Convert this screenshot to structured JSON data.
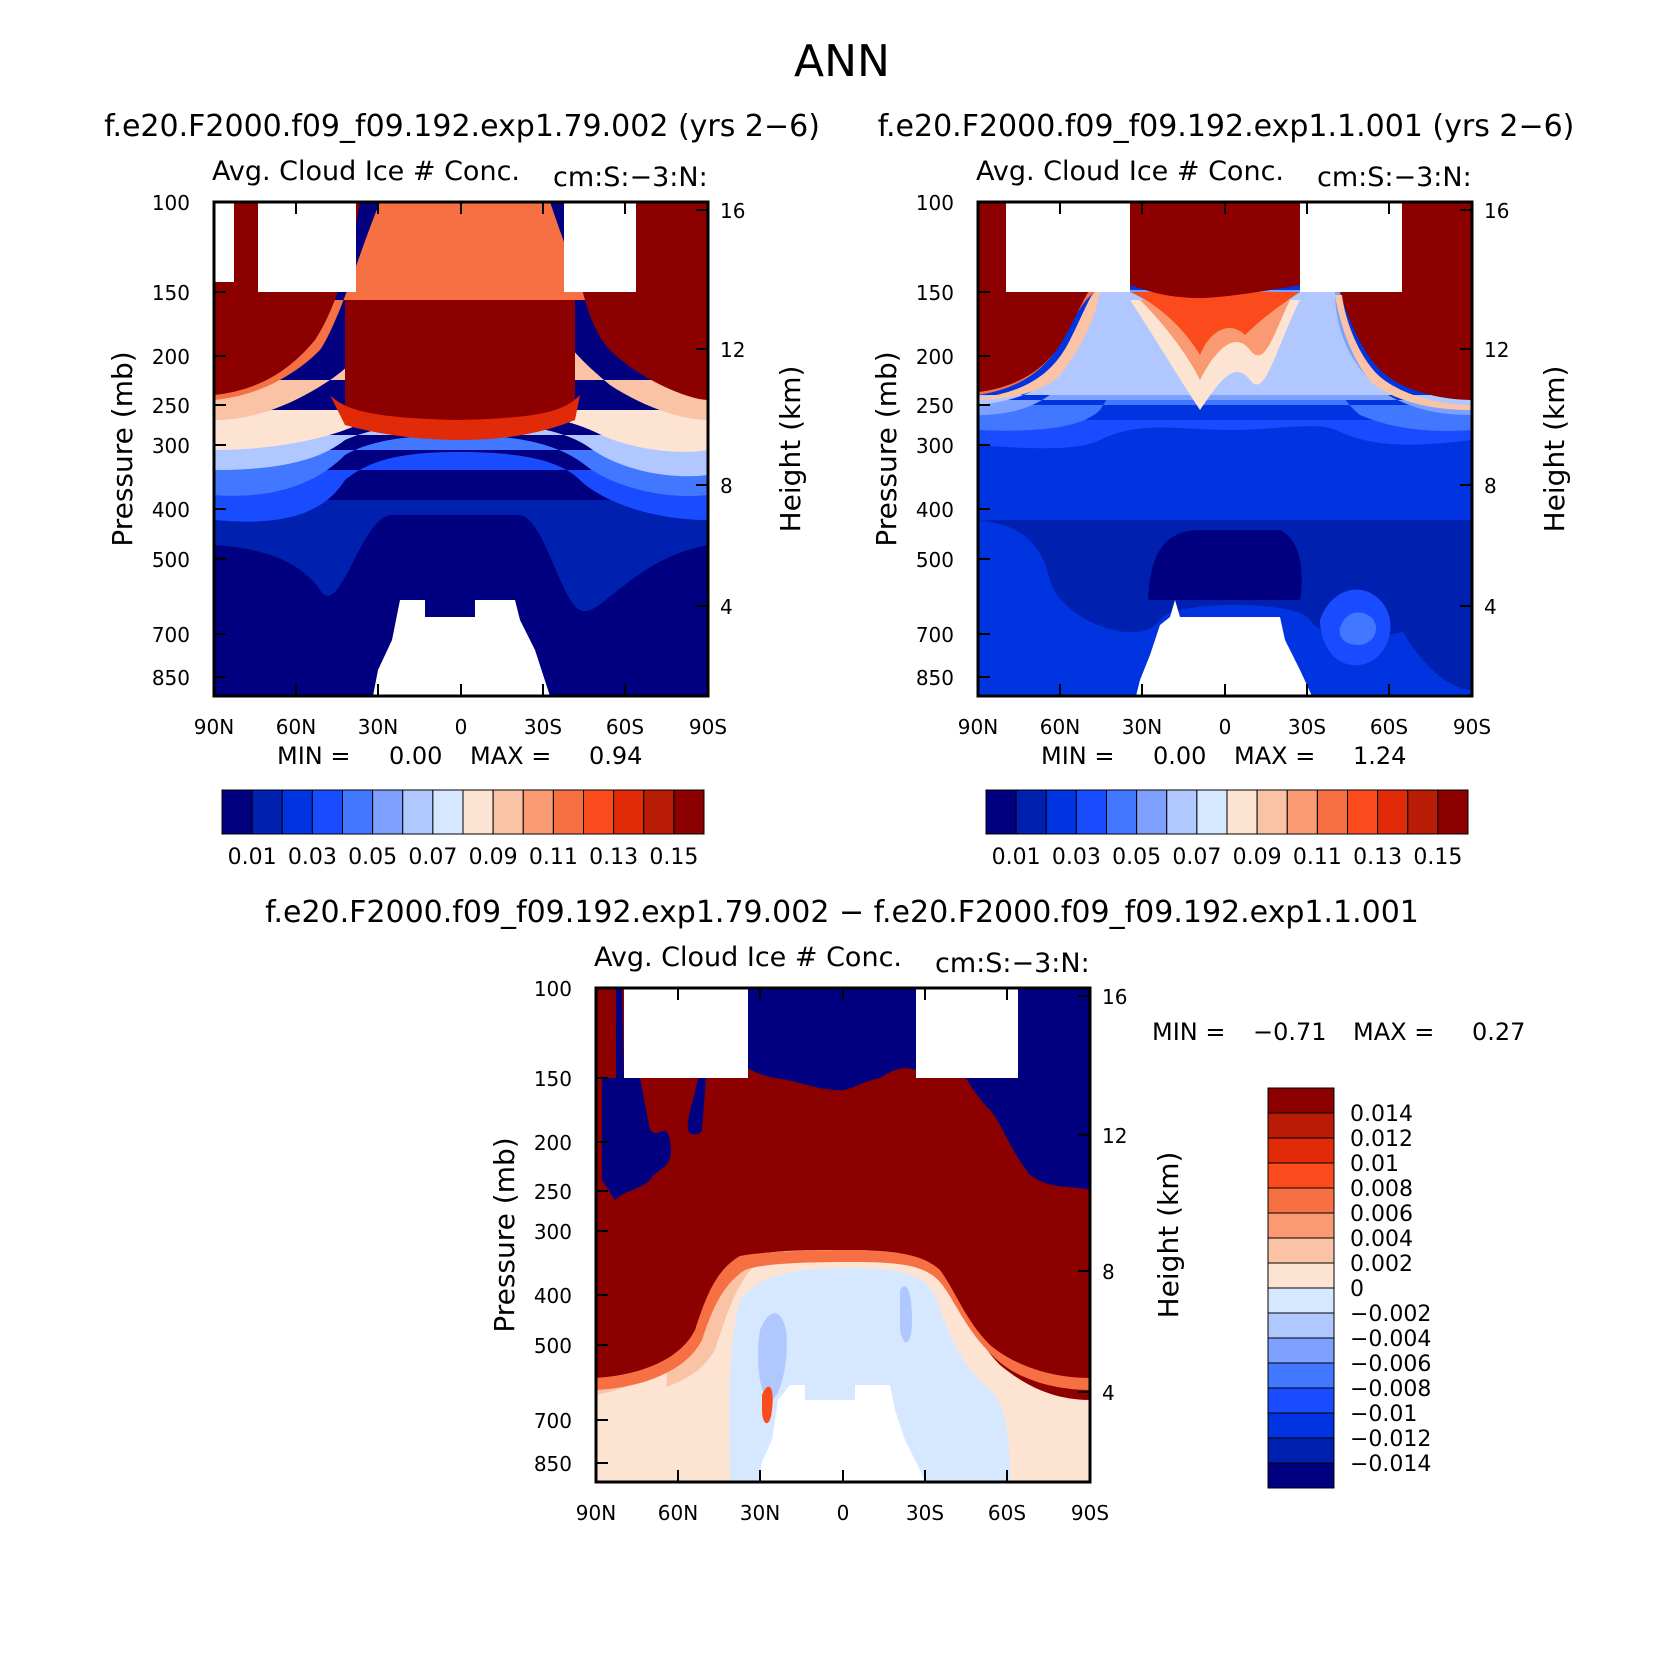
{
  "page_title": "ANN",
  "palette": [
    "#000080",
    "#0020b0",
    "#0034e0",
    "#1a4cff",
    "#4278ff",
    "#7ea0ff",
    "#b0c8ff",
    "#d6e8ff",
    "#fde4d2",
    "#fbc3a5",
    "#f99a73",
    "#f77044",
    "#fb4b1c",
    "#e02a08",
    "#b81c06",
    "#8c0000"
  ],
  "chart_data": [
    {
      "type": "heatmap",
      "case_title": "f.e20.F2000.f09_f09.192.exp1.79.002 (yrs 2−6)",
      "title": "Avg. Cloud Ice # Conc.",
      "units": "cm:S:−3:N:",
      "xlabel": "",
      "ylabel": "Pressure (mb)",
      "ylabel_right": "Height (km)",
      "x_ticks": [
        "90N",
        "60N",
        "30N",
        "0",
        "30S",
        "60S",
        "90S"
      ],
      "y_ticks": [
        "100",
        "150",
        "200",
        "250",
        "300",
        "400",
        "500",
        "700",
        "850"
      ],
      "y_ticks_right": [
        "16",
        "12",
        "8",
        "4"
      ],
      "ylim_mb": [
        100,
        1000
      ],
      "log_y": true,
      "min_label": "MIN =",
      "min": "0.00",
      "max_label": "MAX =",
      "max": "0.94",
      "contour_levels": [
        0.01,
        0.02,
        0.03,
        0.04,
        0.05,
        0.06,
        0.07,
        0.08,
        0.09,
        0.1,
        0.11,
        0.12,
        0.13,
        0.14,
        0.15
      ],
      "colorbar_labels": [
        "0.01",
        "0.03",
        "0.05",
        "0.07",
        "0.09",
        "0.11",
        "0.13",
        "0.15"
      ]
    },
    {
      "type": "heatmap",
      "case_title": "f.e20.F2000.f09_f09.192.exp1.1.001 (yrs 2−6)",
      "title": "Avg. Cloud Ice # Conc.",
      "units": "cm:S:−3:N:",
      "xlabel": "",
      "ylabel": "Pressure (mb)",
      "ylabel_right": "Height (km)",
      "x_ticks": [
        "90N",
        "60N",
        "30N",
        "0",
        "30S",
        "60S",
        "90S"
      ],
      "y_ticks": [
        "100",
        "150",
        "200",
        "250",
        "300",
        "400",
        "500",
        "700",
        "850"
      ],
      "y_ticks_right": [
        "16",
        "12",
        "8",
        "4"
      ],
      "ylim_mb": [
        100,
        1000
      ],
      "log_y": true,
      "min_label": "MIN =",
      "min": "0.00",
      "max_label": "MAX =",
      "max": "1.24",
      "contour_levels": [
        0.01,
        0.02,
        0.03,
        0.04,
        0.05,
        0.06,
        0.07,
        0.08,
        0.09,
        0.1,
        0.11,
        0.12,
        0.13,
        0.14,
        0.15
      ],
      "colorbar_labels": [
        "0.01",
        "0.03",
        "0.05",
        "0.07",
        "0.09",
        "0.11",
        "0.13",
        "0.15"
      ]
    },
    {
      "type": "heatmap",
      "case_title": "f.e20.F2000.f09_f09.192.exp1.79.002 − f.e20.F2000.f09_f09.192.exp1.1.001",
      "title": "Avg. Cloud Ice # Conc.",
      "units": "cm:S:−3:N:",
      "xlabel": "",
      "ylabel": "Pressure (mb)",
      "ylabel_right": "Height (km)",
      "x_ticks": [
        "90N",
        "60N",
        "30N",
        "0",
        "30S",
        "60S",
        "90S"
      ],
      "y_ticks": [
        "100",
        "150",
        "200",
        "250",
        "300",
        "400",
        "500",
        "700",
        "850"
      ],
      "y_ticks_right": [
        "16",
        "12",
        "8",
        "4"
      ],
      "ylim_mb": [
        100,
        1000
      ],
      "log_y": true,
      "min_label": "MIN =",
      "min": "−0.71",
      "max_label": "MAX =",
      "max": "0.27",
      "contour_levels": [
        -0.014,
        -0.012,
        -0.01,
        -0.008,
        -0.006,
        -0.004,
        -0.002,
        0,
        0.002,
        0.004,
        0.006,
        0.008,
        0.01,
        0.012,
        0.014
      ],
      "colorbar_labels": [
        "0.014",
        "0.012",
        "0.01",
        "0.008",
        "0.006",
        "0.004",
        "0.002",
        "0",
        "−0.002",
        "−0.004",
        "−0.006",
        "−0.008",
        "−0.01",
        "−0.012",
        "−0.014"
      ]
    }
  ]
}
